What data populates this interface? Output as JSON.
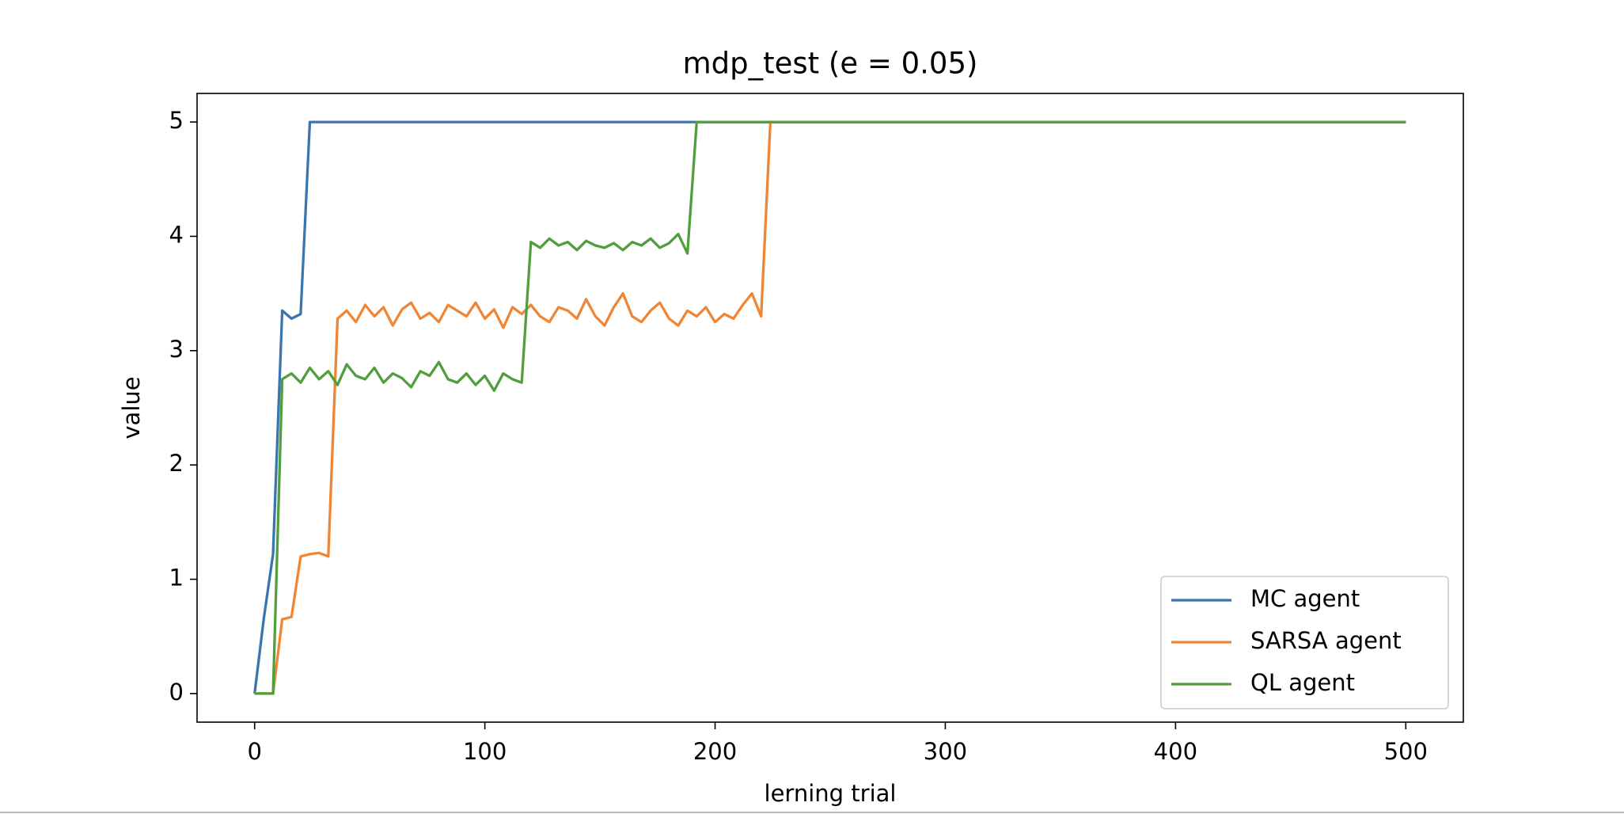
{
  "chart_data": {
    "type": "line",
    "title": "mdp_test (e = 0.05)",
    "xlabel": "lerning trial",
    "ylabel": "value",
    "x": [
      0,
      4,
      8,
      12,
      16,
      20,
      24,
      28,
      32,
      36,
      40,
      44,
      48,
      52,
      56,
      60,
      64,
      68,
      72,
      76,
      80,
      84,
      88,
      92,
      96,
      100,
      104,
      108,
      112,
      116,
      120,
      124,
      128,
      132,
      136,
      140,
      144,
      148,
      152,
      156,
      160,
      164,
      168,
      172,
      176,
      180,
      184,
      188,
      192,
      196,
      200,
      204,
      208,
      212,
      216,
      220,
      224,
      228,
      500
    ],
    "series": [
      {
        "name": "MC agent",
        "color": "#3b75af",
        "values": [
          0,
          0.66,
          1.22,
          3.35,
          3.28,
          3.32,
          5,
          5,
          5,
          5,
          5,
          5,
          5,
          5,
          5,
          5,
          5,
          5,
          5,
          5,
          5,
          5,
          5,
          5,
          5,
          5,
          5,
          5,
          5,
          5,
          5,
          5,
          5,
          5,
          5,
          5,
          5,
          5,
          5,
          5,
          5,
          5,
          5,
          5,
          5,
          5,
          5,
          5,
          5,
          5,
          5,
          5,
          5,
          5,
          5,
          5,
          5,
          5,
          5
        ]
      },
      {
        "name": "SARSA agent",
        "color": "#ef8636",
        "values": [
          0,
          0,
          0,
          0.65,
          0.67,
          1.2,
          1.22,
          1.23,
          1.2,
          3.28,
          3.35,
          3.25,
          3.4,
          3.3,
          3.38,
          3.22,
          3.36,
          3.42,
          3.28,
          3.33,
          3.25,
          3.4,
          3.35,
          3.3,
          3.42,
          3.28,
          3.36,
          3.2,
          3.38,
          3.32,
          3.4,
          3.3,
          3.25,
          3.38,
          3.35,
          3.28,
          3.45,
          3.3,
          3.22,
          3.38,
          3.5,
          3.3,
          3.25,
          3.35,
          3.42,
          3.28,
          3.22,
          3.35,
          3.3,
          3.38,
          3.25,
          3.32,
          3.28,
          3.4,
          3.5,
          3.3,
          5,
          5,
          5
        ]
      },
      {
        "name": "QL agent",
        "color": "#519e3e",
        "values": [
          0,
          0,
          0,
          2.75,
          2.8,
          2.72,
          2.85,
          2.75,
          2.82,
          2.7,
          2.88,
          2.78,
          2.75,
          2.85,
          2.72,
          2.8,
          2.76,
          2.68,
          2.82,
          2.78,
          2.9,
          2.75,
          2.72,
          2.8,
          2.7,
          2.78,
          2.65,
          2.8,
          2.75,
          2.72,
          3.95,
          3.9,
          3.98,
          3.92,
          3.95,
          3.88,
          3.96,
          3.92,
          3.9,
          3.94,
          3.88,
          3.95,
          3.92,
          3.98,
          3.9,
          3.94,
          4.02,
          3.85,
          5,
          5,
          5,
          5,
          5,
          5,
          5,
          5,
          5,
          5,
          5
        ]
      }
    ],
    "xlim": [
      -25,
      525
    ],
    "ylim": [
      -0.25,
      5.25
    ],
    "xticks": [
      0,
      100,
      200,
      300,
      400,
      500
    ],
    "yticks": [
      0,
      1,
      2,
      3,
      4,
      5
    ],
    "legend": "lower right"
  }
}
